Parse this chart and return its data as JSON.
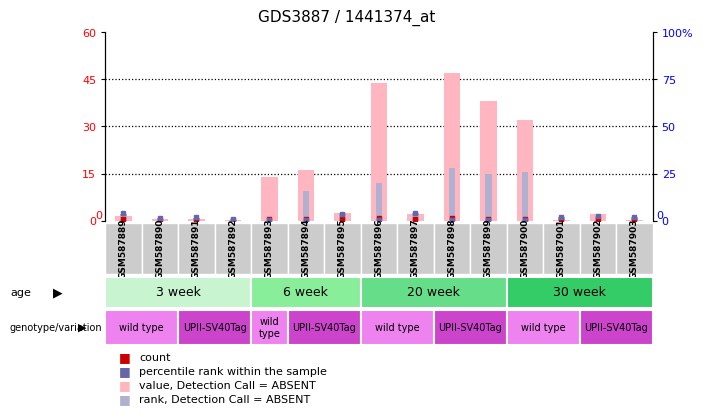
{
  "title": "GDS3887 / 1441374_at",
  "samples": [
    "GSM587889",
    "GSM587890",
    "GSM587891",
    "GSM587892",
    "GSM587893",
    "GSM587894",
    "GSM587895",
    "GSM587896",
    "GSM587897",
    "GSM587898",
    "GSM587899",
    "GSM587900",
    "GSM587901",
    "GSM587902",
    "GSM587903"
  ],
  "value_absent": [
    1.5,
    0.5,
    0.5,
    0.3,
    14.0,
    16.0,
    2.5,
    44.0,
    2.0,
    47.0,
    38.0,
    32.0,
    0.3,
    2.0,
    0.3
  ],
  "rank_absent": [
    3.5,
    1.5,
    1.5,
    1.0,
    0.0,
    16.0,
    4.0,
    20.0,
    4.0,
    28.0,
    25.0,
    26.0,
    2.0,
    2.5,
    2.0
  ],
  "count_values": [
    0.5,
    0.3,
    0.3,
    0.2,
    0.5,
    0.5,
    0.5,
    0.8,
    0.5,
    0.8,
    0.5,
    0.5,
    0.3,
    0.5,
    0.3
  ],
  "rank_values": [
    4.0,
    1.5,
    2.0,
    1.0,
    0.5,
    0.5,
    3.5,
    0.5,
    4.0,
    0.5,
    0.5,
    0.5,
    2.0,
    2.5,
    2.0
  ],
  "ylim_left": [
    0,
    60
  ],
  "ylim_right": [
    0,
    100
  ],
  "yticks_left": [
    0,
    15,
    30,
    45,
    60
  ],
  "yticks_right": [
    0,
    25,
    50,
    75,
    100
  ],
  "ytick_labels_right": [
    "0",
    "25",
    "50",
    "75",
    "100%"
  ],
  "age_groups": [
    {
      "label": "3 week",
      "start": 0,
      "end": 4,
      "color": "#aaeebb"
    },
    {
      "label": "6 week",
      "start": 4,
      "end": 7,
      "color": "#66dd88"
    },
    {
      "label": "20 week",
      "start": 7,
      "end": 11,
      "color": "#55cc77"
    },
    {
      "label": "30 week",
      "start": 11,
      "end": 15,
      "color": "#44bb66"
    }
  ],
  "genotype_groups": [
    {
      "label": "wild type",
      "start": 0,
      "end": 2
    },
    {
      "label": "UPII-SV40Tag",
      "start": 2,
      "end": 4
    },
    {
      "label": "wild\ntype",
      "start": 4,
      "end": 5
    },
    {
      "label": "UPII-SV40Tag",
      "start": 5,
      "end": 7
    },
    {
      "label": "wild type",
      "start": 7,
      "end": 9
    },
    {
      "label": "UPII-SV40Tag",
      "start": 9,
      "end": 11
    },
    {
      "label": "wild type",
      "start": 11,
      "end": 13
    },
    {
      "label": "UPII-SV40Tag",
      "start": 13,
      "end": 15
    }
  ],
  "color_value_absent": "#ffb6c1",
  "color_rank_absent": "#b0b0d0",
  "color_count": "#cc0000",
  "color_rank": "#6666aa",
  "color_age_light": "#b8f0c8",
  "color_age_dark": "#55cc77",
  "color_geno_wild": "#ee82ee",
  "color_geno_upii": "#cc44cc",
  "color_sample_bg": "#cccccc",
  "legend_items": [
    {
      "label": "count",
      "color": "#cc0000"
    },
    {
      "label": "percentile rank within the sample",
      "color": "#6666aa"
    },
    {
      "label": "value, Detection Call = ABSENT",
      "color": "#ffb6c1"
    },
    {
      "label": "rank, Detection Call = ABSENT",
      "color": "#b0b0d0"
    }
  ]
}
